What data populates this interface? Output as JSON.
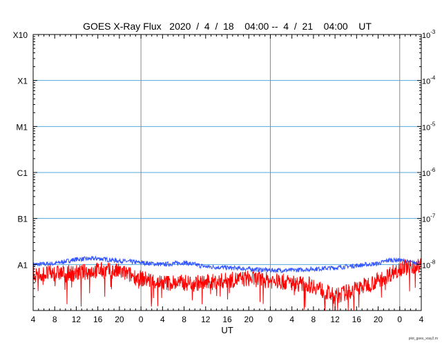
{
  "chart_data": {
    "type": "line",
    "title": "GOES X-Ray Flux   2020  /  4  /  18    04:00 --  4  /  21    04:00    UT",
    "xlabel": "UT",
    "x_tick_labels": [
      "4",
      "8",
      "12",
      "16",
      "20",
      "0",
      "4",
      "8",
      "12",
      "16",
      "20",
      "0",
      "4",
      "8",
      "12",
      "16",
      "20",
      "0",
      "4"
    ],
    "x_range_hours": [
      0,
      72
    ],
    "day_boundaries_hours": [
      20,
      44,
      68
    ],
    "y_scale": "log",
    "ylim": [
      1e-09,
      0.001
    ],
    "left_axis_labels": [
      "X10",
      "X1",
      "M1",
      "C1",
      "B1",
      "A1"
    ],
    "left_axis_values": [
      0.001,
      0.0001,
      1e-05,
      1e-06,
      1e-07,
      1e-08
    ],
    "right_axis_labels": [
      {
        "base": "10",
        "exp": "-3"
      },
      {
        "base": "10",
        "exp": "-4"
      },
      {
        "base": "10",
        "exp": "-5"
      },
      {
        "base": "10",
        "exp": "-6"
      },
      {
        "base": "10",
        "exp": "-7"
      },
      {
        "base": "10",
        "exp": "-8"
      }
    ],
    "grid_horizontal": true,
    "grid_vertical": true,
    "series": [
      {
        "color": "#3355ff",
        "x": [
          0,
          4,
          8,
          12,
          16,
          20,
          24,
          28,
          32,
          36,
          40,
          44,
          48,
          52,
          56,
          60,
          64,
          66,
          68,
          70,
          72
        ],
        "values": [
          1e-08,
          1.05e-08,
          1.3e-08,
          1.35e-08,
          1.2e-08,
          1.1e-08,
          1e-08,
          1.1e-08,
          9e-09,
          8.5e-09,
          8e-09,
          7.5e-09,
          7.5e-09,
          8e-09,
          8.5e-09,
          9.5e-09,
          1.05e-08,
          1.25e-08,
          1.25e-08,
          1.1e-08,
          1.1e-08
        ]
      },
      {
        "color": "#ff0000",
        "x": [
          0,
          4,
          8,
          12,
          16,
          20,
          24,
          28,
          32,
          36,
          40,
          44,
          48,
          52,
          56,
          60,
          64,
          66,
          68,
          70,
          72
        ],
        "values": [
          6e-09,
          6.5e-09,
          6.5e-09,
          7.5e-09,
          7e-09,
          5e-09,
          4e-09,
          4e-09,
          4e-09,
          4.5e-09,
          5e-09,
          4.5e-09,
          4e-09,
          3.5e-09,
          2e-09,
          3e-09,
          4.5e-09,
          6e-09,
          8.5e-09,
          9e-09,
          9.5e-09
        ]
      }
    ]
  },
  "footer_text": "plot_goes_xray2.m"
}
